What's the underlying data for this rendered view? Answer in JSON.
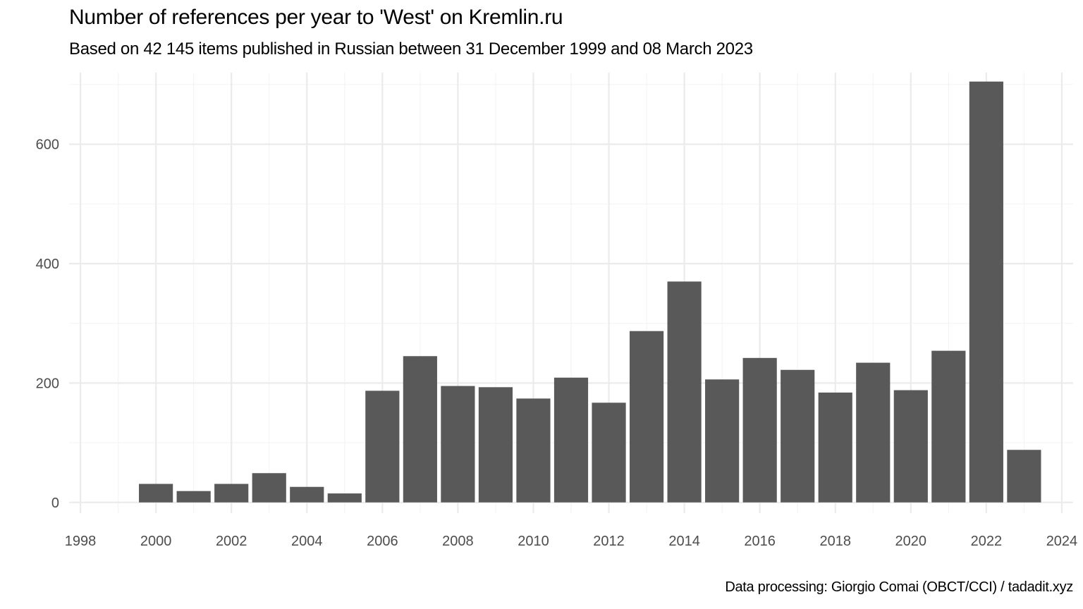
{
  "chart_data": {
    "type": "bar",
    "title": "Number of references per year to 'West' on Kremlin.ru",
    "subtitle": "Based on 42 145 items published in Russian between 31 December 1999 and 08 March 2023",
    "caption": "Data processing: Giorgio Comai (OBCT/CCI) / tadadit.xyz",
    "xlabel": "",
    "ylabel": "",
    "x": [
      2000,
      2001,
      2002,
      2003,
      2004,
      2005,
      2006,
      2007,
      2008,
      2009,
      2010,
      2011,
      2012,
      2013,
      2014,
      2015,
      2016,
      2017,
      2018,
      2019,
      2020,
      2021,
      2022,
      2023
    ],
    "values": [
      31,
      19,
      31,
      49,
      26,
      15,
      187,
      245,
      195,
      193,
      174,
      209,
      167,
      287,
      370,
      206,
      242,
      222,
      184,
      234,
      188,
      254,
      705,
      88
    ],
    "xlim": [
      1997.7,
      2024.3
    ],
    "ylim": [
      -18,
      720
    ],
    "x_ticks": [
      1998,
      2000,
      2002,
      2004,
      2006,
      2008,
      2010,
      2012,
      2014,
      2016,
      2018,
      2020,
      2022,
      2024
    ],
    "y_ticks": [
      0,
      200,
      400,
      600
    ],
    "x_minor_grid": [
      1999,
      2001,
      2003,
      2005,
      2007,
      2009,
      2011,
      2013,
      2015,
      2017,
      2019,
      2021,
      2023
    ],
    "y_minor_grid": [
      100,
      300,
      500,
      700
    ],
    "grid": true,
    "legend": "none",
    "colors": {
      "bar": "#595959",
      "grid_major": "#ebebeb",
      "grid_minor": "#f4f4f4",
      "tick_label": "#4d4d4d",
      "text": "#000000"
    }
  }
}
